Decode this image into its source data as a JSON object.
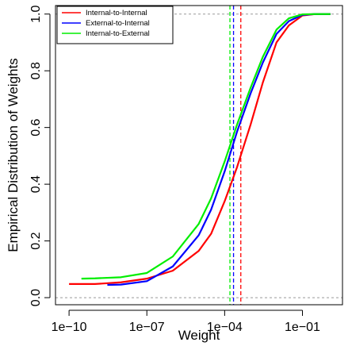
{
  "chart_data": {
    "type": "line",
    "xlabel": "Weight",
    "ylabel": "Empirical Distribution of Weights",
    "xscale": "log10",
    "xlim": [
      3e-11,
      3.5
    ],
    "ylim": [
      -0.025,
      1.03
    ],
    "x_ticks": [
      {
        "value": 1e-10,
        "label": "1e−10"
      },
      {
        "value": 1e-07,
        "label": "1e−07"
      },
      {
        "value": 0.0001,
        "label": "1e−04"
      },
      {
        "value": 0.1,
        "label": "1e−01"
      }
    ],
    "y_ticks": [
      {
        "value": 0.0,
        "label": "0.0"
      },
      {
        "value": 0.2,
        "label": "0.2"
      },
      {
        "value": 0.4,
        "label": "0.4"
      },
      {
        "value": 0.6,
        "label": "0.6"
      },
      {
        "value": 0.8,
        "label": "0.8"
      },
      {
        "value": 1.0,
        "label": "1.0"
      }
    ],
    "reference_lines": [
      0.0,
      1.0
    ],
    "legend_position": "top-left",
    "series": [
      {
        "name": "Internal-to-Internal",
        "color": "#ff0000",
        "median": 0.00042,
        "x": [
          1e-10,
          1e-09,
          1e-08,
          1e-07,
          1e-06,
          1e-05,
          3e-05,
          0.0001,
          0.0003,
          0.001,
          0.003,
          0.01,
          0.03,
          0.1,
          0.3,
          1.2
        ],
        "y": [
          0.048,
          0.048,
          0.054,
          0.067,
          0.095,
          0.165,
          0.225,
          0.34,
          0.46,
          0.61,
          0.76,
          0.9,
          0.96,
          0.995,
          1.0,
          1.0
        ]
      },
      {
        "name": "External-to-Internal",
        "color": "#0000ff",
        "median": 0.00022,
        "x": [
          3e-09,
          1e-08,
          1e-07,
          1e-06,
          1e-05,
          3e-05,
          0.0001,
          0.0003,
          0.001,
          0.003,
          0.01,
          0.03,
          0.1,
          0.3,
          1.2
        ],
        "y": [
          0.045,
          0.046,
          0.058,
          0.11,
          0.22,
          0.31,
          0.445,
          0.585,
          0.72,
          0.83,
          0.93,
          0.975,
          0.997,
          1.0,
          1.0
        ]
      },
      {
        "name": "Internal-to-External",
        "color": "#00ee00",
        "median": 0.00016,
        "x": [
          3e-10,
          1e-09,
          1e-08,
          1e-07,
          1e-06,
          1e-05,
          3e-05,
          0.0001,
          0.0003,
          0.001,
          0.003,
          0.01,
          0.03,
          0.1,
          0.3,
          1.2
        ],
        "y": [
          0.067,
          0.068,
          0.072,
          0.087,
          0.145,
          0.26,
          0.35,
          0.48,
          0.61,
          0.74,
          0.85,
          0.945,
          0.985,
          0.999,
          1.0,
          1.0
        ]
      }
    ]
  }
}
